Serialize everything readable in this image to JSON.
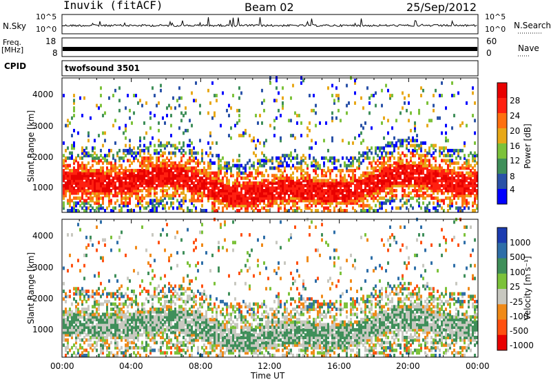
{
  "header": {
    "station": "Inuvik (fitACF)",
    "beam": "Beam 02",
    "date": "25/Sep/2012"
  },
  "strips": {
    "nsky_label": "N.Sky",
    "nsky_ticks": [
      "10^5",
      "10^0"
    ],
    "nsearch_label": "N.Search",
    "nsearch_ticks": [
      "10^5",
      "10^0"
    ],
    "freq_label": "Freq.",
    "freq_unit": "[MHz]",
    "freq_ticks": [
      "18",
      "8"
    ],
    "nave_label": "Nave",
    "nave_ticks": [
      "60",
      "0"
    ],
    "cpid_label": "CPID",
    "cpid_value": "twofsound 3501"
  },
  "chart_data": [
    {
      "type": "heatmap",
      "name": "power",
      "ylabel": "Slant Range [km]",
      "xlabel": "",
      "yticks": [
        "1000",
        "2000",
        "3000",
        "4000"
      ],
      "ylim": [
        200,
        4500
      ],
      "colorbar": {
        "label": "Power [dB]",
        "ticks": [
          "4",
          "8",
          "12",
          "16",
          "20",
          "24",
          "28"
        ],
        "colors": [
          "#0000ff",
          "#2a52a8",
          "#3f8f5a",
          "#7cc23a",
          "#e8a818",
          "#ff7010",
          "#ff2010",
          "#e80000"
        ]
      }
    },
    {
      "type": "heatmap",
      "name": "velocity",
      "ylabel": "Slant Range [km]",
      "xlabel": "Time UT",
      "yticks": [
        "1000",
        "2000",
        "3000",
        "4000"
      ],
      "ylim": [
        200,
        4500
      ],
      "xticks": [
        "00:00",
        "04:00",
        "08:00",
        "12:00",
        "16:00",
        "20:00",
        "00:00"
      ],
      "colorbar": {
        "label": "Velocity [m s⁻¹]",
        "ticks": [
          "1000",
          "500",
          "100",
          "25",
          "-25",
          "-100",
          "-500",
          "-1000"
        ],
        "colors": [
          "#1c3cb0",
          "#2e6ea8",
          "#3f8f5a",
          "#7cc23a",
          "#c8c8c0",
          "#f08a18",
          "#ff5010",
          "#e80000"
        ]
      }
    }
  ]
}
